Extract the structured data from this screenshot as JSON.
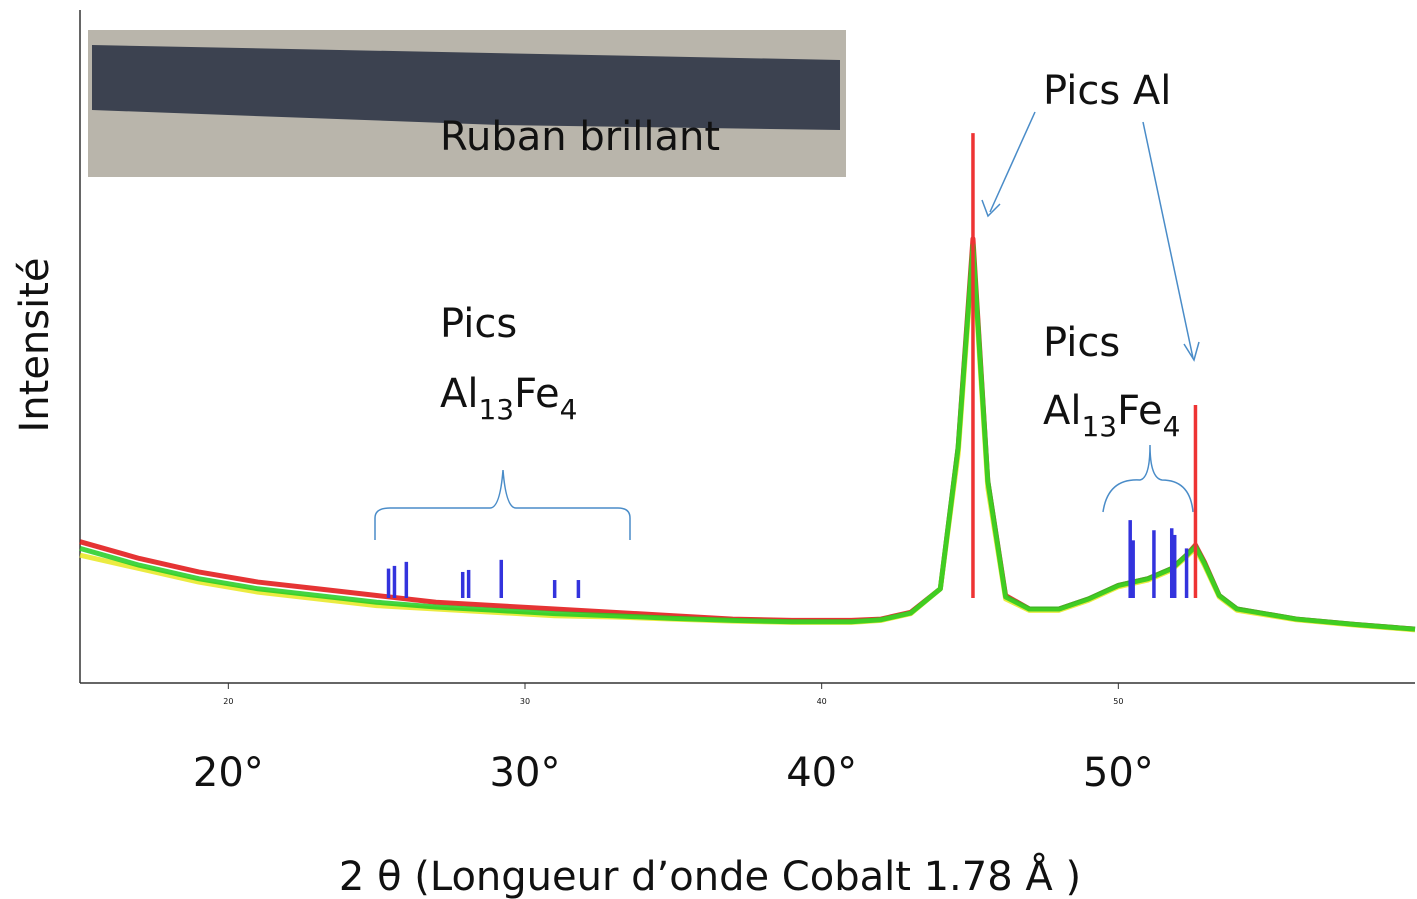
{
  "chart_data": {
    "type": "line",
    "inset_caption": "Ruban brillant",
    "xlabel": "2 θ (Longueur d’onde Cobalt 1.78 Å )",
    "ylabel": "Intensité",
    "xlim": [
      15,
      60
    ],
    "ylim": [
      0,
      100
    ],
    "xticks": [
      {
        "value": 20,
        "label": "20°"
      },
      {
        "value": 30,
        "label": "30°"
      },
      {
        "value": 40,
        "label": "40°"
      },
      {
        "value": 50,
        "label": "50°"
      }
    ],
    "xticks_small": [
      20,
      30,
      40,
      50
    ],
    "x": [
      15,
      17,
      19,
      21,
      23,
      25,
      27,
      29,
      31,
      33,
      35,
      37,
      39,
      41,
      42,
      43,
      44,
      44.6,
      45.1,
      45.6,
      46.2,
      47,
      48,
      49,
      50,
      51,
      51.8,
      52.3,
      52.6,
      52.9,
      53.4,
      54,
      56,
      58,
      60
    ],
    "series": [
      {
        "color": "#e01010",
        "values": [
          21,
          18.5,
          16.5,
          15,
          14,
          13,
          12,
          11.5,
          11,
          10.5,
          10,
          9.5,
          9.3,
          9.3,
          9.5,
          10.5,
          14,
          35,
          66,
          30,
          13,
          11,
          11,
          12.5,
          14.5,
          15.5,
          17,
          19,
          20.5,
          18,
          13,
          11,
          9.5,
          8.7,
          8
        ]
      },
      {
        "color": "#e8e820",
        "values": [
          19,
          17,
          15,
          13.5,
          12.5,
          11.5,
          11,
          10.5,
          10,
          9.8,
          9.5,
          9.2,
          9,
          9,
          9.3,
          10.3,
          14,
          34,
          64,
          29,
          12.5,
          10.8,
          10.8,
          12.3,
          14.3,
          15.3,
          16.8,
          18.8,
          20,
          17.5,
          12.8,
          10.8,
          9.4,
          8.6,
          7.9
        ]
      },
      {
        "color": "#22cc22",
        "values": [
          20,
          17.5,
          15.5,
          14,
          13,
          12,
          11.3,
          10.8,
          10.3,
          10,
          9.6,
          9.3,
          9.1,
          9.1,
          9.4,
          10.4,
          14,
          35,
          65,
          30,
          12.8,
          11,
          11,
          12.5,
          14.5,
          15.5,
          17,
          19,
          20.3,
          17.8,
          13,
          11,
          9.5,
          8.7,
          8
        ]
      }
    ],
    "sticks": [
      {
        "color": "#3333dd",
        "x": [
          25.4,
          25.6,
          26.0,
          27.9,
          28.1,
          29.2,
          31.0,
          31.8,
          50.4,
          50.5,
          51.2,
          51.8,
          51.9,
          52.3
        ],
        "values": [
          17,
          17.4,
          18,
          16.5,
          16.8,
          18.3,
          15.3,
          15.3,
          24.2,
          21.2,
          22.7,
          23,
          22,
          20
        ]
      },
      {
        "color": "#ee3333",
        "x": [
          45.1,
          52.6
        ],
        "values": [
          81.7,
          41.3
        ]
      }
    ],
    "annotations": [
      {
        "text": "Pics Al"
      },
      {
        "text": "Pics",
        "formula": [
          "Al",
          "13",
          "Fe",
          "4"
        ]
      },
      {
        "text": "Pics",
        "formula": [
          "Al",
          "13",
          "Fe",
          "4"
        ]
      }
    ]
  }
}
